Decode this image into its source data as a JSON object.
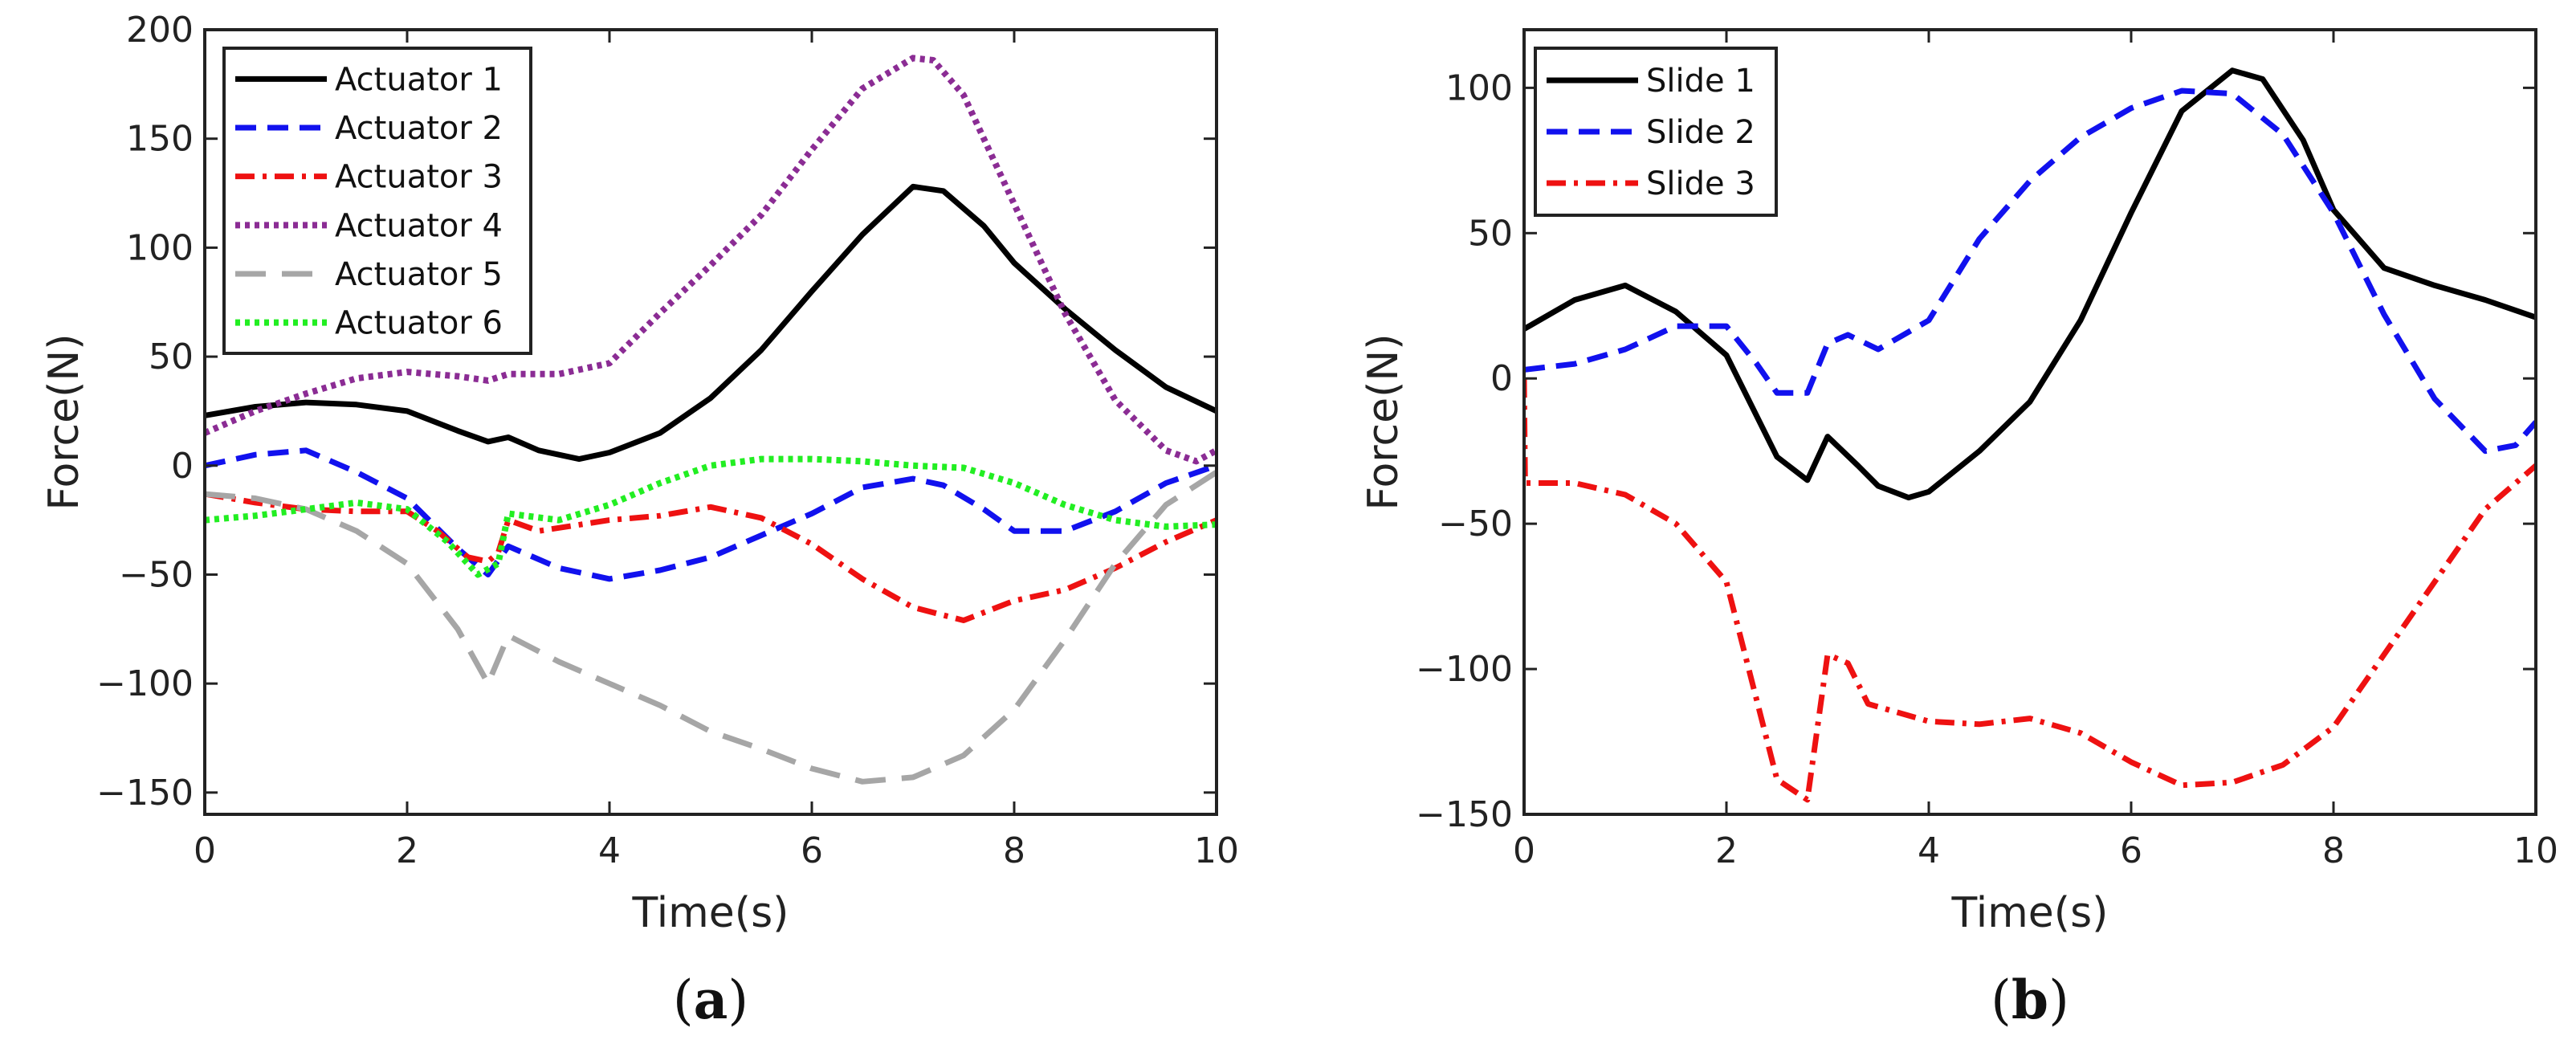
{
  "chart_data": [
    {
      "type": "line",
      "panel_label": {
        "open": "(",
        "letter": "a",
        "close": ")"
      },
      "xlabel": "Time(s)",
      "ylabel": "Force(N)",
      "xlim": [
        0,
        10
      ],
      "ylim": [
        -160,
        200
      ],
      "xticks": [
        0,
        2,
        4,
        6,
        8,
        10
      ],
      "yticks": [
        -150,
        -100,
        -50,
        0,
        50,
        100,
        150,
        200
      ],
      "grid": false,
      "legend_position": "top-left",
      "series": [
        {
          "name": "Actuator 1",
          "color": "#000000",
          "dash": "solid",
          "x": [
            0,
            0.5,
            1,
            1.5,
            2,
            2.5,
            2.8,
            3,
            3.3,
            3.7,
            4,
            4.5,
            5,
            5.5,
            6,
            6.5,
            7,
            7.3,
            7.7,
            8,
            8.5,
            9,
            9.5,
            10
          ],
          "y": [
            23,
            27,
            29,
            28,
            25,
            16,
            11,
            13,
            7,
            3,
            6,
            15,
            31,
            53,
            80,
            106,
            128,
            126,
            110,
            93,
            72,
            53,
            36,
            25
          ]
        },
        {
          "name": "Actuator 2",
          "color": "#1111ee",
          "dash": "dashed",
          "x": [
            0,
            0.5,
            1,
            1.5,
            2,
            2.5,
            2.8,
            3,
            3.5,
            4,
            4.5,
            5,
            5.5,
            6,
            6.5,
            7,
            7.3,
            7.7,
            8,
            8.5,
            9,
            9.5,
            10
          ],
          "y": [
            0,
            5,
            7,
            -3,
            -15,
            -38,
            -50,
            -37,
            -47,
            -52,
            -48,
            -42,
            -32,
            -22,
            -10,
            -6,
            -9,
            -20,
            -30,
            -30,
            -21,
            -8,
            0
          ]
        },
        {
          "name": "Actuator 3",
          "color": "#ee1111",
          "dash": "dashdot",
          "x": [
            0,
            0.5,
            1,
            1.5,
            2,
            2.3,
            2.6,
            2.8,
            2.9,
            3,
            3.3,
            4,
            4.5,
            5,
            5.5,
            6,
            6.5,
            7,
            7.5,
            8,
            8.5,
            9,
            9.5,
            10
          ],
          "y": [
            -13,
            -17,
            -20,
            -21,
            -21,
            -30,
            -42,
            -44,
            -40,
            -25,
            -30,
            -25,
            -23,
            -19,
            -24,
            -36,
            -52,
            -65,
            -71,
            -62,
            -57,
            -47,
            -35,
            -25
          ]
        },
        {
          "name": "Actuator 4",
          "color": "#8b2c94",
          "dash": "dotted",
          "x": [
            0,
            0.5,
            1,
            1.5,
            2,
            2.5,
            2.8,
            3,
            3.5,
            4,
            4.5,
            5,
            5.5,
            6,
            6.5,
            7,
            7.2,
            7.5,
            8,
            8.5,
            9,
            9.5,
            9.8,
            10
          ],
          "y": [
            15,
            25,
            33,
            40,
            43,
            41,
            39,
            42,
            42,
            47,
            70,
            92,
            115,
            145,
            173,
            187,
            186,
            170,
            120,
            70,
            30,
            7,
            2,
            7
          ]
        },
        {
          "name": "Actuator 5",
          "color": "#a6a6a6",
          "dash": "longdash",
          "x": [
            0,
            0.5,
            1,
            1.5,
            2,
            2.5,
            2.8,
            3,
            3.5,
            4,
            4.5,
            5,
            5.5,
            6,
            6.5,
            7,
            7.5,
            8,
            8.5,
            9,
            9.5,
            10
          ],
          "y": [
            -13,
            -15,
            -20,
            -30,
            -45,
            -75,
            -100,
            -78,
            -90,
            -100,
            -110,
            -122,
            -130,
            -139,
            -145,
            -143,
            -133,
            -112,
            -80,
            -45,
            -18,
            -3
          ]
        },
        {
          "name": "Actuator 6",
          "color": "#22ee22",
          "dash": "dotted",
          "x": [
            0,
            0.5,
            1,
            1.5,
            2,
            2.4,
            2.7,
            2.9,
            3,
            3.5,
            4,
            4.5,
            5,
            5.5,
            6,
            6.5,
            7,
            7.5,
            8,
            8.5,
            9,
            9.5,
            10
          ],
          "y": [
            -25,
            -23,
            -20,
            -17,
            -20,
            -35,
            -50,
            -45,
            -22,
            -25,
            -18,
            -8,
            0,
            3,
            3,
            2,
            0,
            -1,
            -8,
            -18,
            -25,
            -28,
            -27
          ]
        }
      ]
    },
    {
      "type": "line",
      "panel_label": {
        "open": "(",
        "letter": "b",
        "close": ")"
      },
      "xlabel": "Time(s)",
      "ylabel": "Force(N)",
      "xlim": [
        0,
        10
      ],
      "ylim": [
        -150,
        120
      ],
      "xticks": [
        0,
        2,
        4,
        6,
        8,
        10
      ],
      "yticks": [
        -150,
        -100,
        -50,
        0,
        50,
        100
      ],
      "grid": false,
      "legend_position": "top-left",
      "series": [
        {
          "name": "Slide 1",
          "color": "#000000",
          "dash": "solid",
          "x": [
            0,
            0.5,
            1,
            1.5,
            2,
            2.5,
            2.8,
            3,
            3.3,
            3.5,
            3.8,
            4,
            4.5,
            5,
            5.5,
            6,
            6.5,
            7,
            7.3,
            7.7,
            8,
            8.5,
            9,
            9.5,
            10
          ],
          "y": [
            17,
            27,
            32,
            23,
            8,
            -27,
            -35,
            -20,
            -30,
            -37,
            -41,
            -39,
            -25,
            -8,
            20,
            57,
            92,
            106,
            103,
            82,
            58,
            38,
            32,
            27,
            21
          ]
        },
        {
          "name": "Slide 2",
          "color": "#1111ee",
          "dash": "dashed",
          "x": [
            0,
            0.5,
            1,
            1.5,
            2,
            2.3,
            2.5,
            2.8,
            3,
            3.2,
            3.5,
            4,
            4.5,
            5,
            5.5,
            6,
            6.5,
            7,
            7.5,
            8,
            8.5,
            9,
            9.5,
            9.8,
            10
          ],
          "y": [
            3,
            5,
            10,
            18,
            18,
            5,
            -5,
            -5,
            12,
            15,
            10,
            20,
            48,
            68,
            83,
            93,
            99,
            98,
            84,
            57,
            22,
            -7,
            -25,
            -23,
            -15
          ]
        },
        {
          "name": "Slide 3",
          "color": "#ee1111",
          "dash": "dashdot",
          "x": [
            0,
            0.01,
            0.5,
            1,
            1.5,
            2,
            2.5,
            2.8,
            3,
            3.2,
            3.4,
            3.7,
            4,
            4.5,
            5,
            5.5,
            6,
            6.5,
            7,
            7.5,
            8,
            8.5,
            9,
            9.5,
            10
          ],
          "y": [
            0,
            -36,
            -36,
            -40,
            -50,
            -70,
            -138,
            -145,
            -95,
            -98,
            -112,
            -115,
            -118,
            -119,
            -117,
            -122,
            -132,
            -140,
            -139,
            -133,
            -120,
            -95,
            -70,
            -45,
            -30
          ]
        }
      ]
    }
  ]
}
